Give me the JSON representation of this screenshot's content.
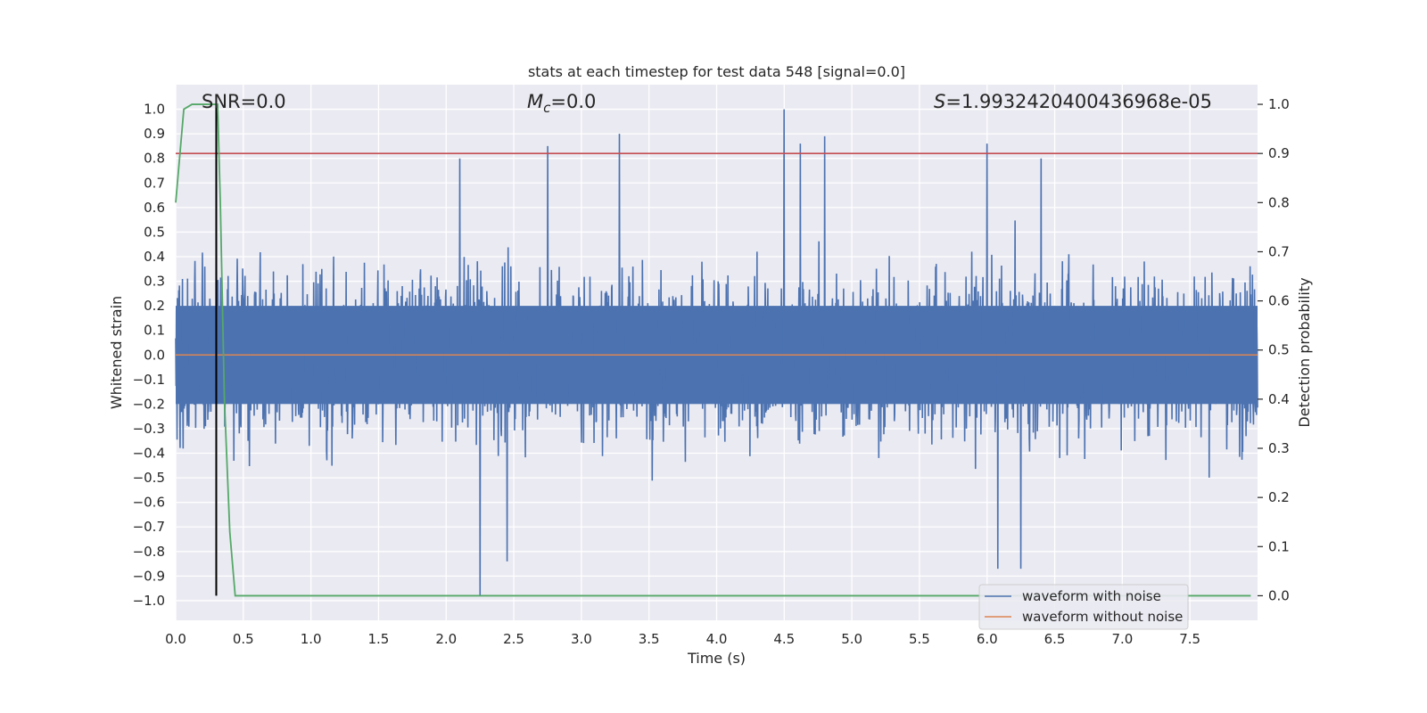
{
  "chart_data": {
    "type": "line",
    "title": "stats at each timestep for test data 548 [signal=0.0]",
    "xlabel": "Time (s)",
    "ylabel_left": "Whitened strain",
    "ylabel_right": "Detection probability",
    "xlim": [
      0.0,
      8.0
    ],
    "ylim_left": [
      -1.08,
      1.1
    ],
    "ylim_right": [
      -0.05,
      1.04
    ],
    "xticks": [
      0.0,
      0.5,
      1.0,
      1.5,
      2.0,
      2.5,
      3.0,
      3.5,
      4.0,
      4.5,
      5.0,
      5.5,
      6.0,
      6.5,
      7.0,
      7.5
    ],
    "xtick_labels": [
      "0.0",
      "0.5",
      "1.0",
      "1.5",
      "2.0",
      "2.5",
      "3.0",
      "3.5",
      "4.0",
      "4.5",
      "5.0",
      "5.5",
      "6.0",
      "6.5",
      "7.0",
      "7.5"
    ],
    "yticks_left": [
      1.0,
      0.9,
      0.8,
      0.7,
      0.6,
      0.5,
      0.4,
      0.3,
      0.2,
      0.1,
      0.0,
      -0.1,
      -0.2,
      -0.3,
      -0.4,
      -0.5,
      -0.6,
      -0.7,
      -0.8,
      -0.9,
      -1.0
    ],
    "ytick_labels_left": [
      "1.0",
      "0.9",
      "0.8",
      "0.7",
      "0.6",
      "0.5",
      "0.4",
      "0.3",
      "0.2",
      "0.1",
      "0.0",
      "−0.1",
      "−0.2",
      "−0.3",
      "−0.4",
      "−0.5",
      "−0.6",
      "−0.7",
      "−0.8",
      "−0.9",
      "−1.0"
    ],
    "yticks_right": [
      1.0,
      0.9,
      0.8,
      0.7,
      0.6,
      0.5,
      0.4,
      0.3,
      0.2,
      0.1,
      0.0
    ],
    "ytick_labels_right": [
      "1.0",
      "0.9",
      "0.8",
      "0.7",
      "0.6",
      "0.5",
      "0.4",
      "0.3",
      "0.2",
      "0.1",
      "0.0"
    ],
    "grid": true,
    "annotations": {
      "snr": "SNR=0.0",
      "mc_symbol": "M",
      "mc_sub": "c",
      "mc_value": "=0.0",
      "s_symbol": "S",
      "s_value": "=1.9932420400436968e-05"
    },
    "series": [
      {
        "name": "waveform with noise",
        "axis": "left",
        "color": "#4c72b0",
        "description_envelope_max": 1.0,
        "description_envelope_min": -0.98,
        "peaks": [
          {
            "x": 0.3,
            "y": 1.0
          },
          {
            "x": 2.1,
            "y": 0.8
          },
          {
            "x": 2.75,
            "y": 0.85
          },
          {
            "x": 3.28,
            "y": 0.9
          },
          {
            "x": 4.5,
            "y": 1.0
          },
          {
            "x": 4.62,
            "y": 0.86
          },
          {
            "x": 4.8,
            "y": 0.89
          },
          {
            "x": 6.0,
            "y": 0.86
          },
          {
            "x": 6.4,
            "y": 0.8
          },
          {
            "x": 2.25,
            "y": -0.98
          },
          {
            "x": 2.45,
            "y": -0.84
          },
          {
            "x": 6.08,
            "y": -0.87
          },
          {
            "x": 6.25,
            "y": -0.87
          }
        ]
      },
      {
        "name": "waveform without noise",
        "axis": "left",
        "color": "#dd8452",
        "constant": 0.0
      },
      {
        "name": "detection probability",
        "axis": "right",
        "color": "#55a868",
        "x": [
          0.0,
          0.06,
          0.12,
          0.25,
          0.31,
          0.33,
          0.36,
          0.4,
          0.44,
          8.0
        ],
        "y": [
          0.8,
          0.99,
          1.0,
          1.0,
          1.0,
          0.8,
          0.4,
          0.13,
          0.0,
          0.0
        ]
      }
    ],
    "threshold": {
      "axis": "right",
      "value": 0.9,
      "color": "#c44e52"
    },
    "vline": {
      "x": 0.3,
      "color": "#000000"
    },
    "legend": {
      "placement": "lower-right",
      "entries": [
        {
          "label": "waveform with noise",
          "color": "#4c72b0"
        },
        {
          "label": "waveform without noise",
          "color": "#dd8452"
        }
      ]
    }
  }
}
